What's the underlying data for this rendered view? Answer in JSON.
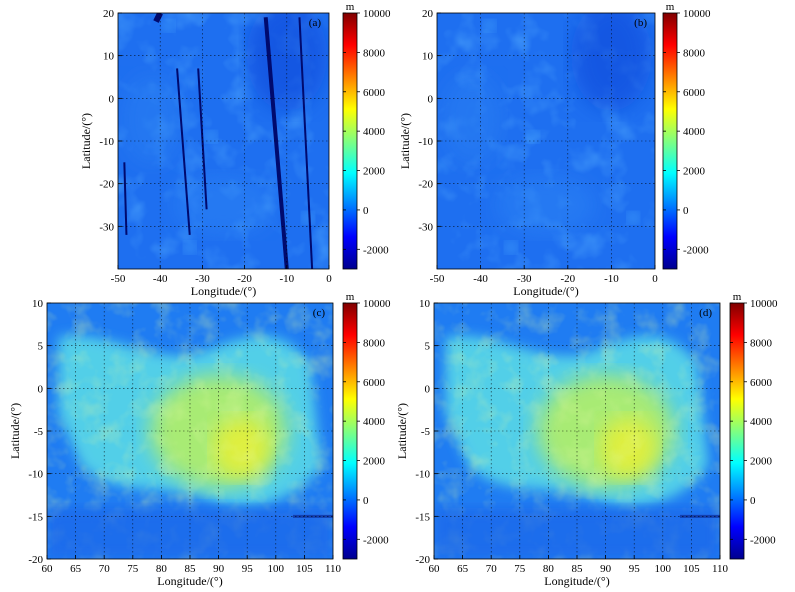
{
  "chart_data": [
    {
      "type": "heatmap",
      "panel_label": "(a)",
      "xlabel": "Longitude/(°)",
      "ylabel": "Latitude/(°)",
      "xlim": [
        -50,
        0
      ],
      "ylim": [
        -40,
        20
      ],
      "x_ticks": [
        -50,
        -40,
        -30,
        -20,
        -10,
        0
      ],
      "y_ticks": [
        20,
        10,
        0,
        -10,
        -20,
        -30
      ],
      "grid": true,
      "colorbar": {
        "unit": "m",
        "range": [
          -3000,
          10000
        ],
        "ticks": [
          10000,
          8000,
          6000,
          4000,
          2000,
          0,
          -2000
        ]
      },
      "mean_elevation_m": -500,
      "data_gaps_lon": [
        -48.5,
        -40,
        -36,
        -31,
        -15,
        -7
      ]
    },
    {
      "type": "heatmap",
      "panel_label": "(b)",
      "xlabel": "Longitude/(°)",
      "ylabel": "Latitude/(°)",
      "xlim": [
        -50,
        0
      ],
      "ylim": [
        -40,
        20
      ],
      "x_ticks": [
        -50,
        -40,
        -30,
        -20,
        -10,
        0
      ],
      "y_ticks": [
        20,
        10,
        0,
        -10,
        -20,
        -30
      ],
      "grid": true,
      "colorbar": {
        "unit": "m",
        "range": [
          -3000,
          10000
        ],
        "ticks": [
          10000,
          8000,
          6000,
          4000,
          2000,
          0,
          -2000
        ]
      },
      "mean_elevation_m": -500
    },
    {
      "type": "heatmap",
      "panel_label": "(c)",
      "xlabel": "Longitude/(°)",
      "ylabel": "Latitude/(°)",
      "xlim": [
        60,
        110
      ],
      "ylim": [
        -20,
        10
      ],
      "x_ticks": [
        60,
        65,
        70,
        75,
        80,
        85,
        90,
        95,
        100,
        105,
        110
      ],
      "y_ticks": [
        10,
        5,
        0,
        -5,
        -10,
        -15,
        -20
      ],
      "grid": true,
      "colorbar": {
        "unit": "m",
        "range": [
          -3000,
          10000
        ],
        "ticks": [
          10000,
          8000,
          6000,
          4000,
          2000,
          0,
          -2000
        ]
      },
      "highland_peak_elevation_m": 5000
    },
    {
      "type": "heatmap",
      "panel_label": "(d)",
      "xlabel": "Longitude/(°)",
      "ylabel": "Latitude/(°)",
      "xlim": [
        60,
        110
      ],
      "ylim": [
        -20,
        10
      ],
      "x_ticks": [
        60,
        65,
        70,
        75,
        80,
        85,
        90,
        95,
        100,
        105,
        110
      ],
      "y_ticks": [
        10,
        5,
        0,
        -5,
        -10,
        -15,
        -20
      ],
      "grid": true,
      "colorbar": {
        "unit": "m",
        "range": [
          -3000,
          10000
        ],
        "ticks": [
          10000,
          8000,
          6000,
          4000,
          2000,
          0,
          -2000
        ]
      },
      "highland_peak_elevation_m": 5000
    }
  ]
}
